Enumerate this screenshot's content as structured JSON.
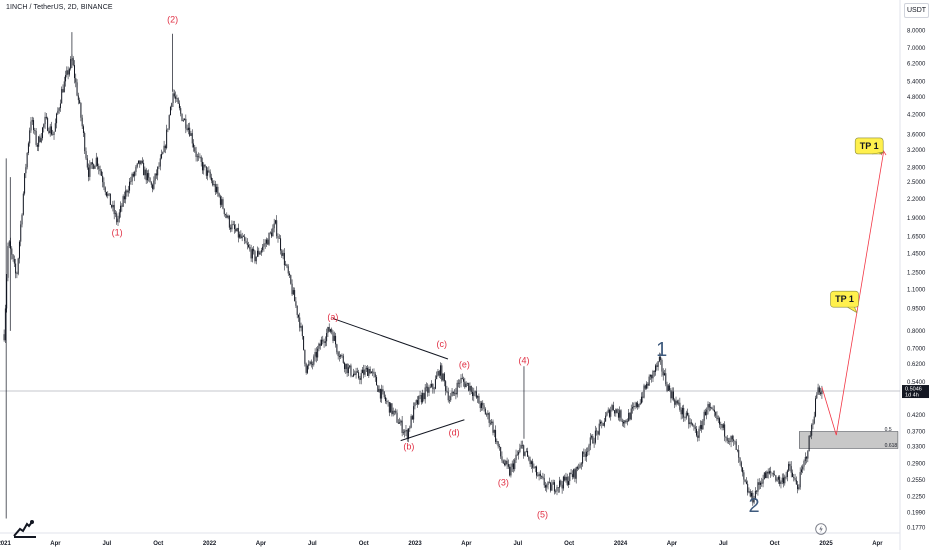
{
  "header": {
    "symbol_title": "1INCH / TetherUS, 2D, BINANCE",
    "currency": "USDT"
  },
  "colors": {
    "candle": "#131722",
    "wave_label": "#e02f43",
    "big_label": "#3e5a7d",
    "projection_line": "#f23645",
    "trendline": "#131722",
    "zone_fill": "#c8c8c8",
    "tp_callout_fill": "#fff04d",
    "crosshair": "#b2b5be"
  },
  "chart_data": {
    "type": "candlestick",
    "y_scale": "log",
    "ylim": [
      0.17,
      8.8
    ],
    "x_ticks": [
      "2021",
      "Apr",
      "Jul",
      "Oct",
      "2022",
      "Apr",
      "Jul",
      "Oct",
      "2023",
      "Apr",
      "Jul",
      "Oct",
      "2024",
      "Apr",
      "Jul",
      "Oct",
      "2025",
      "Apr"
    ],
    "y_ticks": [
      "8.0000",
      "7.0000",
      "6.2000",
      "5.4000",
      "4.8000",
      "4.2000",
      "3.6000",
      "3.2000",
      "2.8000",
      "2.5000",
      "2.2000",
      "1.9000",
      "1.6500",
      "1.4500",
      "1.2500",
      "1.1000",
      "0.9500",
      "0.8000",
      "0.7000",
      "0.6200",
      "0.5400",
      "0.4200",
      "0.3700",
      "0.3300",
      "0.2900",
      "0.2550",
      "0.2250",
      "0.1990",
      "0.1770"
    ],
    "last_price": {
      "value": "0.5046",
      "countdown": "1d 4h"
    },
    "price_path": [
      {
        "t": 2021.0,
        "v": 0.78
      },
      {
        "t": 2021.02,
        "v": 1.6
      },
      {
        "t": 2021.06,
        "v": 1.2
      },
      {
        "t": 2021.1,
        "v": 2.6
      },
      {
        "t": 2021.13,
        "v": 4.1
      },
      {
        "t": 2021.16,
        "v": 3.3
      },
      {
        "t": 2021.2,
        "v": 4.0
      },
      {
        "t": 2021.24,
        "v": 3.6
      },
      {
        "t": 2021.28,
        "v": 5.0
      },
      {
        "t": 2021.33,
        "v": 6.4
      },
      {
        "t": 2021.37,
        "v": 4.3
      },
      {
        "t": 2021.41,
        "v": 2.7
      },
      {
        "t": 2021.45,
        "v": 3.0
      },
      {
        "t": 2021.5,
        "v": 2.3
      },
      {
        "t": 2021.55,
        "v": 1.85
      },
      {
        "t": 2021.6,
        "v": 2.4
      },
      {
        "t": 2021.66,
        "v": 2.9
      },
      {
        "t": 2021.72,
        "v": 2.4
      },
      {
        "t": 2021.78,
        "v": 3.2
      },
      {
        "t": 2021.82,
        "v": 5.0
      },
      {
        "t": 2021.86,
        "v": 4.2
      },
      {
        "t": 2021.9,
        "v": 3.8
      },
      {
        "t": 2021.94,
        "v": 3.0
      },
      {
        "t": 2022.0,
        "v": 2.6
      },
      {
        "t": 2022.05,
        "v": 2.2
      },
      {
        "t": 2022.1,
        "v": 1.8
      },
      {
        "t": 2022.16,
        "v": 1.6
      },
      {
        "t": 2022.22,
        "v": 1.4
      },
      {
        "t": 2022.28,
        "v": 1.6
      },
      {
        "t": 2022.32,
        "v": 1.8
      },
      {
        "t": 2022.36,
        "v": 1.4
      },
      {
        "t": 2022.4,
        "v": 1.1
      },
      {
        "t": 2022.44,
        "v": 0.85
      },
      {
        "t": 2022.47,
        "v": 0.6
      },
      {
        "t": 2022.5,
        "v": 0.62
      },
      {
        "t": 2022.55,
        "v": 0.75
      },
      {
        "t": 2022.59,
        "v": 0.82
      },
      {
        "t": 2022.62,
        "v": 0.7
      },
      {
        "t": 2022.67,
        "v": 0.6
      },
      {
        "t": 2022.72,
        "v": 0.56
      },
      {
        "t": 2022.78,
        "v": 0.6
      },
      {
        "t": 2022.83,
        "v": 0.5
      },
      {
        "t": 2022.9,
        "v": 0.42
      },
      {
        "t": 2022.96,
        "v": 0.36
      },
      {
        "t": 2023.0,
        "v": 0.45
      },
      {
        "t": 2023.05,
        "v": 0.5
      },
      {
        "t": 2023.09,
        "v": 0.52
      },
      {
        "t": 2023.12,
        "v": 0.6
      },
      {
        "t": 2023.17,
        "v": 0.47
      },
      {
        "t": 2023.22,
        "v": 0.55
      },
      {
        "t": 2023.27,
        "v": 0.52
      },
      {
        "t": 2023.32,
        "v": 0.45
      },
      {
        "t": 2023.37,
        "v": 0.4
      },
      {
        "t": 2023.42,
        "v": 0.3
      },
      {
        "t": 2023.46,
        "v": 0.27
      },
      {
        "t": 2023.49,
        "v": 0.3
      },
      {
        "t": 2023.52,
        "v": 0.33
      },
      {
        "t": 2023.55,
        "v": 0.3
      },
      {
        "t": 2023.6,
        "v": 0.26
      },
      {
        "t": 2023.65,
        "v": 0.24
      },
      {
        "t": 2023.72,
        "v": 0.25
      },
      {
        "t": 2023.78,
        "v": 0.27
      },
      {
        "t": 2023.84,
        "v": 0.33
      },
      {
        "t": 2023.9,
        "v": 0.38
      },
      {
        "t": 2023.96,
        "v": 0.45
      },
      {
        "t": 2024.02,
        "v": 0.4
      },
      {
        "t": 2024.08,
        "v": 0.45
      },
      {
        "t": 2024.14,
        "v": 0.55
      },
      {
        "t": 2024.19,
        "v": 0.63
      },
      {
        "t": 2024.23,
        "v": 0.52
      },
      {
        "t": 2024.28,
        "v": 0.45
      },
      {
        "t": 2024.33,
        "v": 0.4
      },
      {
        "t": 2024.38,
        "v": 0.36
      },
      {
        "t": 2024.42,
        "v": 0.45
      },
      {
        "t": 2024.47,
        "v": 0.4
      },
      {
        "t": 2024.52,
        "v": 0.36
      },
      {
        "t": 2024.56,
        "v": 0.33
      },
      {
        "t": 2024.6,
        "v": 0.25
      },
      {
        "t": 2024.64,
        "v": 0.22
      },
      {
        "t": 2024.69,
        "v": 0.26
      },
      {
        "t": 2024.74,
        "v": 0.27
      },
      {
        "t": 2024.78,
        "v": 0.25
      },
      {
        "t": 2024.82,
        "v": 0.28
      },
      {
        "t": 2024.86,
        "v": 0.24
      },
      {
        "t": 2024.9,
        "v": 0.3
      },
      {
        "t": 2024.93,
        "v": 0.38
      },
      {
        "t": 2024.96,
        "v": 0.52
      },
      {
        "t": 2024.98,
        "v": 0.5046
      }
    ],
    "wave_labels": [
      {
        "text": "(1)",
        "t": 2021.55,
        "v": 1.78,
        "pos": "below"
      },
      {
        "text": "(2)",
        "t": 2021.82,
        "v": 8.3,
        "pos": "above"
      },
      {
        "text": "(3)",
        "t": 2023.43,
        "v": 0.262,
        "pos": "below"
      },
      {
        "text": "(4)",
        "t": 2023.53,
        "v": 0.61,
        "pos": "above"
      },
      {
        "text": "(5)",
        "t": 2023.62,
        "v": 0.205,
        "pos": "below"
      },
      {
        "text": "(a)",
        "t": 2022.6,
        "v": 0.85,
        "pos": "above"
      },
      {
        "text": "(b)",
        "t": 2022.97,
        "v": 0.345,
        "pos": "below"
      },
      {
        "text": "(c)",
        "t": 2023.13,
        "v": 0.69,
        "pos": "above"
      },
      {
        "text": "(d)",
        "t": 2023.19,
        "v": 0.385,
        "pos": "below"
      },
      {
        "text": "(e)",
        "t": 2023.24,
        "v": 0.59,
        "pos": "above"
      }
    ],
    "big_labels": [
      {
        "text": "1",
        "t": 2024.2,
        "v": 0.66
      },
      {
        "text": "2",
        "t": 2024.65,
        "v": 0.2
      }
    ],
    "fib_zone": {
      "top": 0.37,
      "bottom": 0.325,
      "levels": [
        {
          "text": "0.5",
          "v": 0.372
        },
        {
          "text": "0.618",
          "v": 0.328
        }
      ]
    },
    "trendlines": [
      {
        "t1": 2022.6,
        "v1": 0.88,
        "t2": 2023.16,
        "v2": 0.645
      },
      {
        "t1": 2022.93,
        "v1": 0.345,
        "t2": 2023.24,
        "v2": 0.405
      }
    ],
    "projection": [
      {
        "t": 2024.98,
        "v": 0.52
      },
      {
        "t": 2025.05,
        "v": 0.36
      },
      {
        "t": 2025.15,
        "v": 0.92
      },
      {
        "t": 2025.28,
        "v": 3.15
      }
    ],
    "targets": [
      {
        "text": "TP 1",
        "t": 2025.09,
        "v": 1.02
      },
      {
        "text": "TP 1",
        "t": 2025.21,
        "v": 3.3
      }
    ]
  }
}
